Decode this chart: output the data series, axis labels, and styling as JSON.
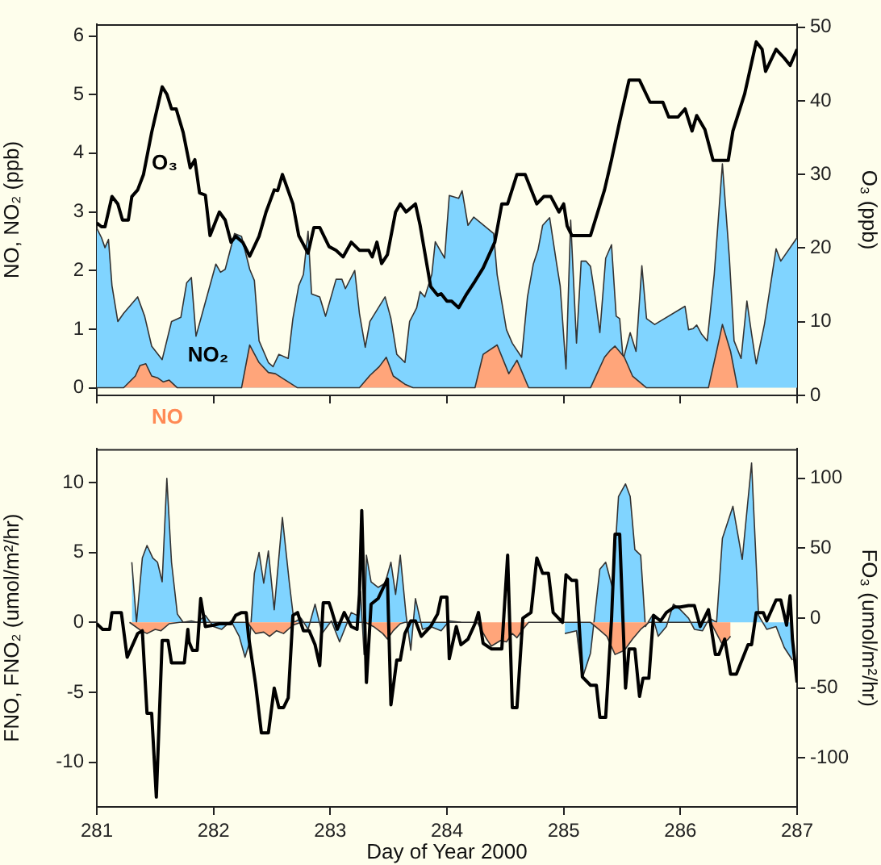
{
  "chart_data": [
    {
      "type": "area",
      "ylabel": "NO, NO₂ (ppb)",
      "y2label": "O₃ (ppb)",
      "xlim": [
        281,
        287
      ],
      "xticks": [
        281,
        282,
        283,
        284,
        285,
        286,
        287
      ],
      "ylim": [
        -0.13,
        6.2
      ],
      "yticks": [
        0,
        1,
        2,
        3,
        4,
        5,
        6
      ],
      "y2lim": [
        0,
        50.4
      ],
      "y2ticks": [
        0,
        10,
        20,
        30,
        40,
        50
      ],
      "tick_labels": "y",
      "grid": false,
      "legend": false,
      "marker": "none",
      "series": [
        {
          "name": "NO₂",
          "color": "#80d4ff",
          "x": [
            281,
            281.04,
            281.07,
            281.1,
            281.13,
            281.18,
            281.23,
            281.35,
            281.41,
            281.47,
            281.56,
            281.64,
            281.72,
            281.77,
            281.81,
            281.85,
            281.93,
            282.02,
            282.06,
            282.1,
            282.18,
            282.24,
            282.31,
            282.35,
            282.39,
            282.47,
            282.51,
            282.56,
            282.64,
            282.68,
            282.73,
            282.77,
            282.81,
            282.84,
            282.91,
            282.96,
            283.05,
            283.1,
            283.13,
            283.21,
            283.25,
            283.3,
            283.34,
            283.47,
            283.52,
            283.57,
            283.64,
            283.68,
            283.74,
            283.77,
            283.81,
            283.87,
            283.9,
            283.98,
            284.02,
            284.1,
            284.13,
            284.18,
            284.23,
            284.4,
            284.43,
            284.51,
            284.56,
            284.64,
            284.69,
            284.74,
            284.78,
            284.82,
            284.88,
            284.94,
            284.97,
            285.02,
            285.06,
            285.11,
            285.15,
            285.19,
            285.23,
            285.27,
            285.31,
            285.36,
            285.41,
            285.45,
            285.48,
            285.51,
            285.57,
            285.62,
            285.67,
            285.71,
            285.78,
            286.04,
            286.07,
            286.11,
            286.14,
            286.18,
            286.23,
            286.29,
            286.36,
            286.42,
            286.46,
            286.52,
            286.57,
            286.61,
            286.65,
            286.72,
            286.82,
            286.86,
            287
          ],
          "values": [
            2.72,
            2.56,
            2.39,
            2.53,
            1.74,
            1.13,
            1.27,
            1.55,
            1.22,
            0.71,
            0.48,
            1.13,
            1.2,
            1.79,
            1.88,
            0.88,
            1.46,
            2.11,
            1.97,
            2.02,
            2.63,
            2.58,
            2.02,
            1.83,
            0.8,
            0.43,
            0.36,
            0.57,
            0.5,
            1.18,
            1.74,
            1.93,
            2.67,
            1.6,
            1.55,
            1.22,
            1.85,
            1.85,
            1.69,
            2.0,
            1.27,
            0.69,
            1.13,
            1.55,
            1.18,
            0.57,
            0.43,
            1.13,
            1.36,
            1.64,
            1.55,
            1.93,
            2.49,
            2.21,
            3.28,
            3.23,
            3.36,
            2.77,
            2.91,
            2.63,
            1.93,
            0.99,
            0.76,
            0.52,
            1.55,
            2.11,
            2.35,
            2.77,
            2.9,
            2.11,
            1.74,
            0.32,
            2.86,
            0.76,
            2.16,
            2.16,
            2.07,
            1.55,
            0.94,
            2.21,
            2.44,
            1.22,
            1.18,
            0.48,
            0.94,
            0.62,
            2.08,
            1.18,
            1.08,
            1.39,
            0.99,
            1.01,
            1.07,
            0.92,
            0.8,
            1.93,
            3.82,
            2.21,
            0.8,
            0.5,
            1.48,
            0.92,
            0.41,
            1.08,
            2.37,
            2.16,
            2.56
          ]
        },
        {
          "name": "NO",
          "color": "#ffa57a",
          "x": [
            281,
            281.23,
            281.33,
            281.37,
            281.42,
            281.47,
            281.52,
            281.57,
            281.62,
            281.69,
            282.24,
            282.31,
            282.39,
            282.47,
            282.53,
            282.6,
            282.72,
            283.25,
            283.34,
            283.42,
            283.48,
            283.54,
            283.64,
            283.71,
            284.24,
            284.31,
            284.43,
            284.53,
            284.6,
            284.7,
            285.23,
            285.35,
            285.4,
            285.44,
            285.52,
            285.59,
            285.71,
            286.24,
            286.31,
            286.36,
            286.43,
            286.49
          ],
          "values": [
            0,
            0,
            0.2,
            0.38,
            0.41,
            0.2,
            0.17,
            0.1,
            0.13,
            0,
            0,
            0.73,
            0.43,
            0.26,
            0.24,
            0.15,
            0,
            0,
            0.21,
            0.36,
            0.52,
            0.2,
            0.06,
            0,
            0,
            0.57,
            0.73,
            0.24,
            0.47,
            0,
            0,
            0.52,
            0.64,
            0.71,
            0.52,
            0.2,
            0,
            0,
            0.62,
            1.08,
            0.62,
            0
          ]
        },
        {
          "name": "O₃",
          "type": "line",
          "axis": "y2",
          "color": "#000000",
          "x": [
            281,
            281.04,
            281.07,
            281.13,
            281.18,
            281.22,
            281.27,
            281.3,
            281.35,
            281.4,
            281.47,
            281.56,
            281.6,
            281.64,
            281.68,
            281.74,
            281.8,
            281.84,
            281.88,
            281.93,
            281.97,
            282.05,
            282.1,
            282.15,
            282.19,
            282.25,
            282.31,
            282.39,
            282.45,
            282.52,
            282.55,
            282.59,
            282.68,
            282.73,
            282.81,
            282.86,
            282.91,
            282.99,
            283.05,
            283.11,
            283.18,
            283.25,
            283.33,
            283.36,
            283.4,
            283.44,
            283.49,
            283.56,
            283.6,
            283.65,
            283.73,
            283.77,
            283.86,
            283.92,
            283.95,
            284,
            284.04,
            284.1,
            284.17,
            284.24,
            284.31,
            284.41,
            284.47,
            284.52,
            284.6,
            284.67,
            284.77,
            284.83,
            284.89,
            284.96,
            285,
            285.03,
            285.07,
            285.23,
            285.35,
            285.41,
            285.48,
            285.56,
            285.65,
            285.74,
            285.85,
            285.9,
            285.98,
            286.04,
            286.1,
            286.14,
            286.21,
            286.28,
            286.41,
            286.45,
            286.55,
            286.65,
            286.7,
            286.73,
            286.82,
            286.89,
            286.94,
            287
          ],
          "values": [
            23.4,
            22.9,
            22.9,
            27,
            26,
            23.8,
            23.8,
            27,
            27.9,
            30,
            35.7,
            41.9,
            40.9,
            38.9,
            38.9,
            35.7,
            30.9,
            32,
            27.5,
            27.2,
            21.7,
            24.9,
            23.8,
            20.8,
            21.6,
            20.8,
            18.9,
            21.6,
            24.9,
            27.9,
            27.8,
            30,
            26,
            21.7,
            19.3,
            22.8,
            22.8,
            20.2,
            19.7,
            18.8,
            20.8,
            19.7,
            19.7,
            18.8,
            20.8,
            17.9,
            19.1,
            24.9,
            26,
            24.9,
            26,
            23.1,
            14.8,
            13.6,
            13.8,
            12.8,
            12.8,
            11.9,
            13.8,
            15.5,
            17.3,
            20.8,
            26,
            26,
            30,
            30,
            26,
            27,
            27,
            24.9,
            26,
            23,
            21.7,
            21.7,
            27.9,
            32,
            37.2,
            42.8,
            42.8,
            39.8,
            39.8,
            37.8,
            37.8,
            38.9,
            35.9,
            38,
            36.1,
            31.9,
            31.9,
            35.9,
            40.9,
            48,
            47,
            44,
            47,
            45.8,
            44.8,
            47
          ]
        }
      ]
    },
    {
      "type": "area",
      "xlabel": "Day of Year 2000",
      "ylabel": "FNO, FNO₂ (umol/m²/hr)",
      "y2label": "FO₃ (umol/m²/hr)",
      "xlim": [
        281,
        287
      ],
      "xticks": [
        281,
        282,
        283,
        284,
        285,
        286,
        287
      ],
      "ylim": [
        -13.2,
        12.4
      ],
      "yticks": [
        -10,
        -5,
        0,
        5,
        10
      ],
      "y2lim": [
        -135,
        121
      ],
      "y2ticks": [
        -100,
        -50,
        0,
        50,
        100
      ],
      "grid": false,
      "legend": false,
      "marker": "none",
      "series": [
        {
          "color": "#80d4ff",
          "x": [
            281.3,
            281.34,
            281.39,
            281.43,
            281.48,
            281.52,
            281.56,
            281.6,
            281.64,
            281.69,
            281.74,
            281.81,
            281.86,
            281.93,
            282,
            282.07,
            282.15,
            282.22,
            282.27,
            282.31,
            282.35,
            282.39,
            282.43,
            282.47,
            282.52,
            282.59,
            282.65,
            282.69,
            282.75,
            282.81,
            282.87,
            282.93,
            283.01,
            283.08,
            283.18,
            283.23,
            283.26,
            283.29,
            283.31,
            283.35,
            283.41,
            283.47,
            283.52,
            283.56,
            283.6,
            283.65,
            283.69,
            283.73,
            283.79,
            283.86,
            283.95,
            284.02,
            284.12,
            284.5,
            285.01,
            285.11,
            285.16,
            285.23,
            285.31,
            285.36,
            285.42,
            285.47,
            285.53,
            285.57,
            285.61,
            285.66,
            285.7,
            285.76,
            285.81,
            285.88,
            285.94,
            286,
            286.07,
            286.12,
            286.19,
            286.25,
            286.31,
            286.36,
            286.45,
            286.53,
            286.61,
            286.67,
            286.74,
            286.82,
            286.89,
            286.96
          ],
          "values": [
            4.3,
            0,
            4.6,
            5.5,
            4.6,
            4.3,
            2.9,
            10.3,
            4.3,
            0.6,
            0,
            0.1,
            0,
            0.5,
            -0.3,
            -0.5,
            0.1,
            -1,
            -2.5,
            -1.4,
            3.5,
            5,
            2.8,
            5.1,
            0.9,
            7.5,
            2.8,
            0,
            0.3,
            -0.5,
            1.3,
            -0.8,
            0.1,
            -1.4,
            0.7,
            0.5,
            2.2,
            -2.3,
            4.8,
            2.9,
            2.5,
            2.8,
            4.3,
            2,
            4.8,
            0.5,
            -2,
            1.7,
            -0.5,
            -0.3,
            -0.6,
            0.1,
            0,
            null,
            -0.8,
            -0.6,
            -4,
            -2.2,
            3.8,
            4.3,
            2.4,
            9,
            9.9,
            9,
            5.2,
            4.8,
            -0.3,
            0.5,
            -1,
            -0.3,
            1.3,
            0.9,
            0.3,
            -0.5,
            -0.6,
            0.3,
            0,
            6,
            8.3,
            4.5,
            11.4,
            0.5,
            -0.5,
            -0.3,
            -1.8,
            -2.7
          ]
        },
        {
          "color": "#ffa57a",
          "x": [
            281.28,
            281.38,
            281.43,
            281.5,
            281.55,
            281.62,
            281.71,
            282.29,
            282.36,
            282.43,
            282.48,
            282.54,
            282.6,
            282.68,
            282.75,
            283.3,
            283.37,
            283.45,
            283.49,
            283.54,
            283.6,
            283.64,
            284.26,
            284.34,
            284.38,
            284.46,
            284.51,
            284.56,
            284.6,
            284.65,
            284.7,
            285.23,
            285.3,
            285.37,
            285.44,
            285.52,
            285.59,
            285.66,
            285.73,
            286.26,
            286.31,
            286.36,
            286.41,
            286.43
          ],
          "values": [
            0,
            -0.6,
            -0.8,
            -0.5,
            -0.6,
            -0.1,
            0,
            0,
            -0.8,
            -0.7,
            -1,
            -0.6,
            -0.8,
            -0.2,
            0,
            0,
            -0.3,
            -0.8,
            -1.2,
            -0.6,
            -0.1,
            0,
            0,
            -1.2,
            -1.7,
            -1.3,
            -1.4,
            -0.8,
            -1.1,
            -0.5,
            0,
            0,
            -0.5,
            -1,
            -2.3,
            -2,
            -1.2,
            -0.5,
            0,
            0,
            -0.8,
            -1.6,
            -1.2,
            -1
          ]
        },
        {
          "type": "line",
          "axis": "y2",
          "color": "#000000",
          "x": [
            281,
            281.05,
            281.11,
            281.13,
            281.21,
            281.26,
            281.35,
            281.39,
            281.43,
            281.47,
            281.51,
            281.56,
            281.61,
            281.64,
            281.71,
            281.75,
            281.78,
            281.79,
            281.82,
            281.86,
            281.89,
            281.93,
            282,
            282.05,
            282.15,
            282.19,
            282.24,
            282.28,
            282.3,
            282.36,
            282.41,
            282.47,
            282.52,
            282.56,
            282.6,
            282.64,
            282.68,
            282.72,
            282.77,
            282.82,
            282.87,
            282.91,
            282.94,
            282.99,
            283.01,
            283.06,
            283.12,
            283.18,
            283.23,
            283.25,
            283.27,
            283.31,
            283.35,
            283.41,
            283.45,
            283.49,
            283.52,
            283.57,
            283.6,
            283.64,
            283.69,
            283.73,
            283.78,
            283.86,
            283.92,
            283.95,
            284,
            284.02,
            284.08,
            284.12,
            284.18,
            284.24,
            284.27,
            284.31,
            284.38,
            284.47,
            284.52,
            284.56,
            284.6,
            284.65,
            284.72,
            284.77,
            284.82,
            284.87,
            284.91,
            284.99,
            285.02,
            285.07,
            285.11,
            285.16,
            285.23,
            285.28,
            285.31,
            285.36,
            285.41,
            285.44,
            285.48,
            285.53,
            285.56,
            285.61,
            285.65,
            285.68,
            285.73,
            285.77,
            285.83,
            285.88,
            285.95,
            286,
            286.07,
            286.12,
            286.17,
            286.24,
            286.3,
            286.33,
            286.38,
            286.43,
            286.48,
            286.58,
            286.61,
            286.65,
            286.71,
            286.74,
            286.82,
            286.86,
            286.91,
            286.94,
            286.96,
            287
          ],
          "values": [
            -4,
            -8,
            -8,
            4,
            4,
            -28,
            -11,
            -9,
            -68,
            -68,
            -128,
            -16,
            -16,
            -32,
            -32,
            -32,
            -8,
            -17,
            -23,
            -23,
            14,
            -6,
            -5,
            -4,
            -4,
            2,
            4,
            4,
            -13,
            -47,
            -82,
            -82,
            -50,
            -64,
            -64,
            -57,
            2,
            4,
            -9,
            -9,
            -19,
            -34,
            11,
            11,
            6,
            -8,
            4,
            -6,
            -8,
            17,
            77,
            -46,
            10,
            14,
            21,
            28,
            -62,
            -30,
            -30,
            -11,
            -2,
            -2,
            -13,
            -6,
            3,
            15,
            15,
            -29,
            -6,
            -19,
            -15,
            -4,
            4,
            -18,
            -22,
            -22,
            45,
            -64,
            -64,
            0,
            4,
            43,
            32,
            32,
            4,
            -3,
            31,
            27,
            27,
            -42,
            -48,
            -48,
            -71,
            -71,
            -1,
            60,
            60,
            -50,
            -22,
            -22,
            -56,
            -43,
            -43,
            2,
            -2,
            4,
            8,
            8,
            9,
            9,
            -6,
            6,
            -26,
            -26,
            -15,
            -40,
            -40,
            -19,
            -19,
            4,
            4,
            -2,
            13,
            13,
            -5,
            16,
            -15,
            -46
          ]
        }
      ]
    }
  ]
}
